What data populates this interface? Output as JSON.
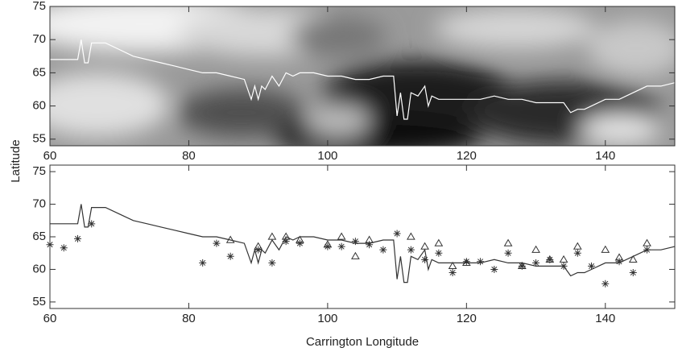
{
  "chart_data": [
    {
      "type": "line",
      "ylabel": "Latitude",
      "xlim": [
        60,
        150
      ],
      "xticks": [
        60,
        80,
        100,
        120,
        140
      ],
      "ylim": [
        54,
        75
      ],
      "yticks": [
        55,
        60,
        65,
        70,
        75
      ],
      "series": [
        {
          "color": "#ffffff",
          "marker": "none",
          "x": [
            60,
            62,
            63,
            64,
            64.5,
            65,
            65.5,
            66,
            67,
            68,
            70,
            72,
            74,
            76,
            78,
            80,
            82,
            84,
            86,
            88,
            89,
            89.5,
            90,
            90.5,
            91,
            92,
            93,
            94,
            95,
            96,
            98,
            100,
            102,
            104,
            106,
            108,
            109.5,
            110,
            110.5,
            111,
            111.5,
            112,
            113,
            114,
            114.5,
            115,
            116,
            118,
            120,
            122,
            124,
            126,
            128,
            130,
            132,
            134,
            135,
            136,
            137,
            138,
            140,
            142,
            144,
            146,
            148,
            150
          ],
          "values": [
            67,
            67,
            67,
            67,
            70,
            66.5,
            66.5,
            69.5,
            69.5,
            69.5,
            68.5,
            67.5,
            67,
            66.5,
            66,
            65.5,
            65,
            65,
            64.5,
            64,
            61,
            63,
            61,
            63,
            62.5,
            64.5,
            63,
            65,
            64.5,
            65,
            65,
            64.5,
            64.5,
            64,
            64,
            64.5,
            64.5,
            58.5,
            62,
            58,
            58,
            62,
            61.5,
            63,
            60,
            61.5,
            61,
            61,
            61,
            61,
            61.5,
            61,
            61,
            60.5,
            60.5,
            60.5,
            59,
            59.5,
            59.5,
            60,
            61,
            61,
            62,
            63,
            63,
            63.5
          ]
        }
      ]
    },
    {
      "type": "line",
      "xlabel": "Carrington Longitude",
      "xlim": [
        60,
        150
      ],
      "xticks": [
        60,
        80,
        100,
        120,
        140
      ],
      "ylim": [
        54,
        76
      ],
      "yticks": [
        55,
        60,
        65,
        70,
        75
      ],
      "series": [
        {
          "color": "#333333",
          "marker": "none",
          "x": [
            60,
            62,
            63,
            64,
            64.5,
            65,
            65.5,
            66,
            67,
            68,
            70,
            72,
            74,
            76,
            78,
            80,
            82,
            84,
            86,
            88,
            89,
            89.5,
            90,
            90.5,
            91,
            92,
            93,
            94,
            95,
            96,
            98,
            100,
            102,
            104,
            106,
            108,
            109.5,
            110,
            110.5,
            111,
            111.5,
            112,
            113,
            114,
            114.5,
            115,
            116,
            118,
            120,
            122,
            124,
            126,
            128,
            130,
            132,
            134,
            135,
            136,
            137,
            138,
            140,
            142,
            144,
            146,
            148,
            150
          ],
          "values": [
            67,
            67,
            67,
            67,
            70,
            66.5,
            66.5,
            69.5,
            69.5,
            69.5,
            68.5,
            67.5,
            67,
            66.5,
            66,
            65.5,
            65,
            65,
            64.5,
            64,
            61,
            63,
            61,
            63,
            62.5,
            64.5,
            63,
            65,
            64.5,
            65,
            65,
            64.5,
            64.5,
            64,
            64,
            64.5,
            64.5,
            58.5,
            62,
            58,
            58,
            62,
            61.5,
            63,
            60,
            61.5,
            61,
            61,
            61,
            61,
            61.5,
            61,
            61,
            60.5,
            60.5,
            60.5,
            59,
            59.5,
            59.5,
            60,
            61,
            61,
            62,
            63,
            63,
            63.5
          ]
        },
        {
          "color": "#333333",
          "marker": "asterisk",
          "x": [
            60,
            62,
            64,
            66,
            82,
            84,
            86,
            90,
            92,
            94,
            96,
            100,
            102,
            104,
            106,
            108,
            110,
            112,
            114,
            116,
            118,
            120,
            122,
            124,
            126,
            128,
            130,
            132,
            134,
            136,
            138,
            140,
            142,
            144,
            146
          ],
          "values": [
            63.8,
            63.3,
            64.7,
            67,
            61,
            64,
            62,
            63,
            61,
            64.3,
            64,
            63.5,
            63.5,
            64.3,
            63.8,
            63,
            65.5,
            63,
            61.5,
            62.5,
            59.5,
            61.2,
            61.2,
            60,
            62.5,
            60.5,
            61,
            61.5,
            60.5,
            62.5,
            60.5,
            57.8,
            61.2,
            59.5,
            63
          ]
        },
        {
          "color": "#333333",
          "marker": "triangle",
          "x": [
            86,
            90,
            92,
            94,
            96,
            100,
            102,
            104,
            106,
            112,
            114,
            116,
            118,
            120,
            126,
            128,
            130,
            132,
            134,
            136,
            140,
            142,
            144,
            146
          ],
          "values": [
            64.5,
            63.5,
            65,
            65,
            64.5,
            63.8,
            65,
            62,
            64.5,
            65,
            63.5,
            64,
            60.5,
            61,
            64,
            60.5,
            63,
            61.5,
            61.5,
            63.5,
            63,
            61.8,
            61.5,
            64
          ]
        }
      ]
    }
  ]
}
